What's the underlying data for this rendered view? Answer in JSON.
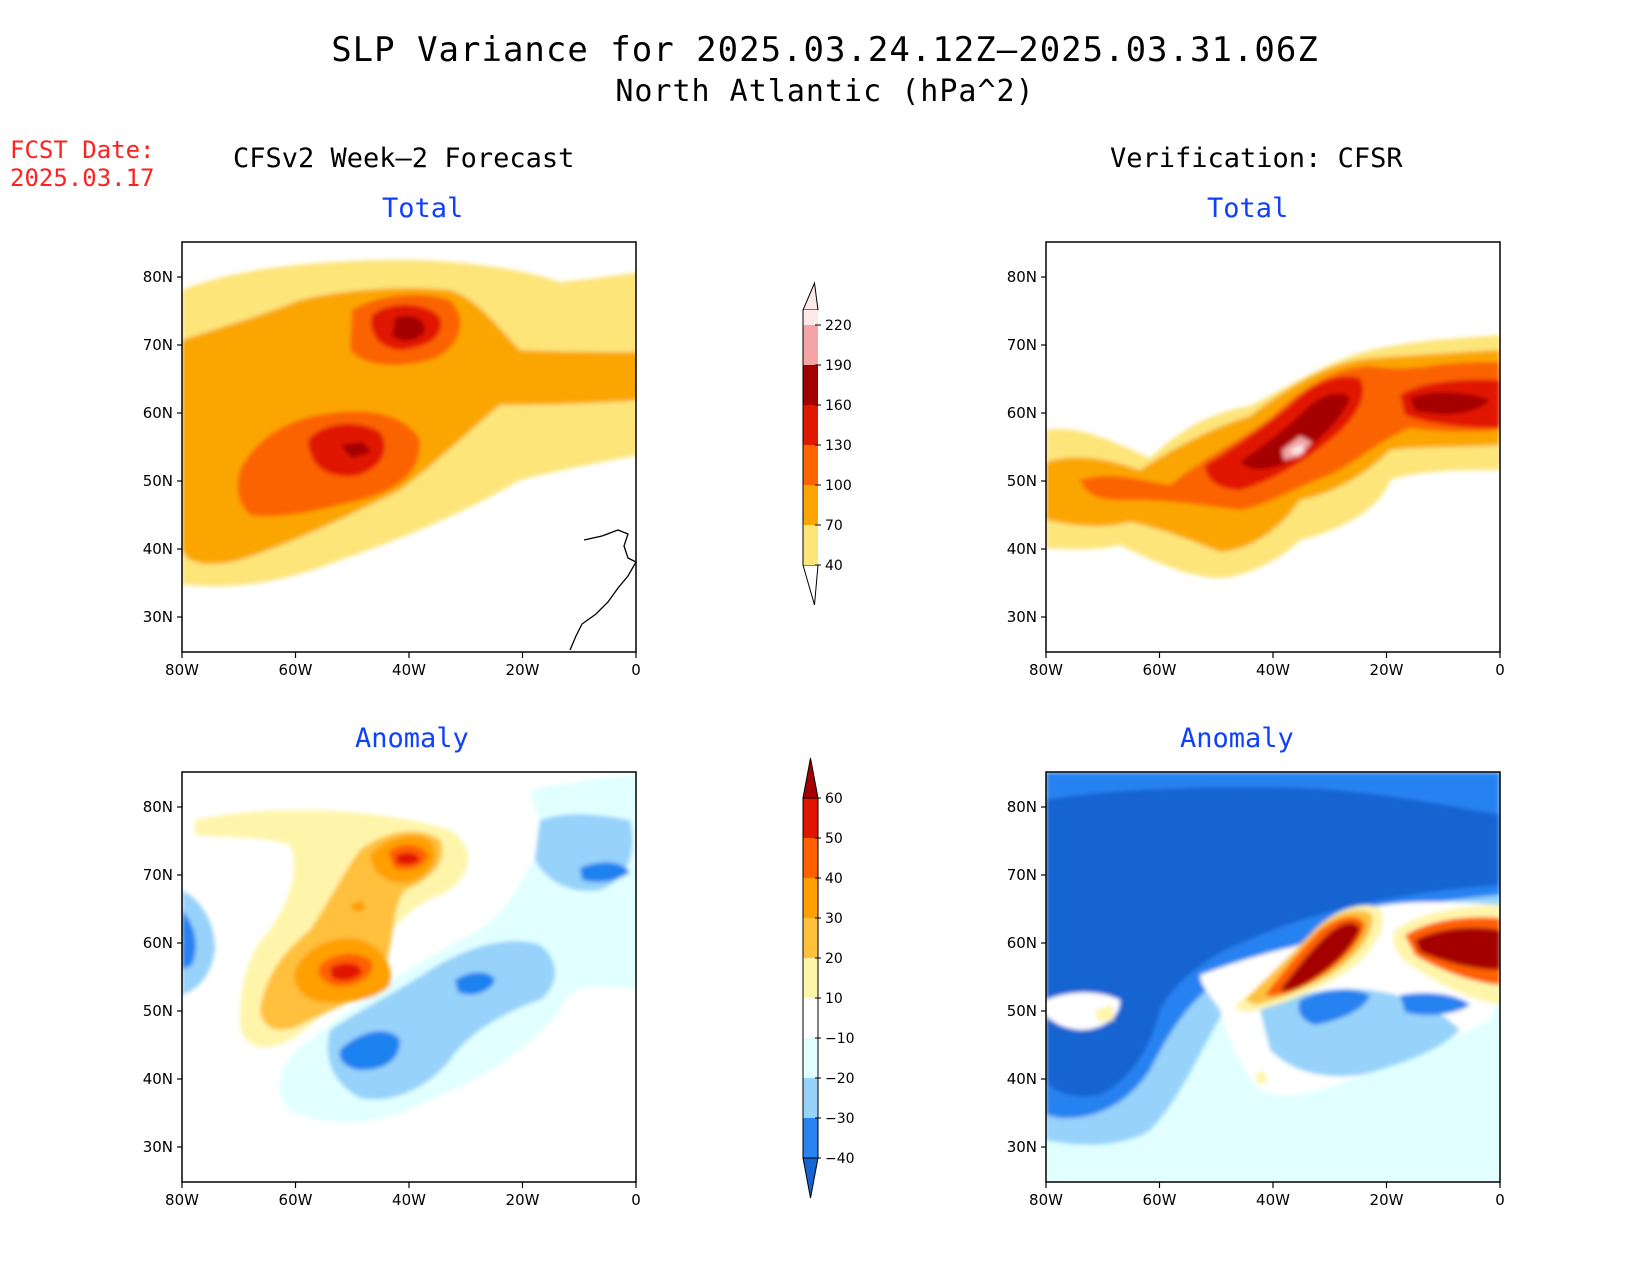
{
  "title": "SLP Variance for 2025.03.24.12Z–2025.03.31.06Z",
  "subtitle": "North Atlantic (hPa^2)",
  "fcst_label": "FCST Date:",
  "fcst_date": "2025.03.17",
  "left_column_title": "CFSv2 Week–2 Forecast",
  "right_column_title": "Verification: CFSR",
  "panel_titles": {
    "total": "Total",
    "anomaly": "Anomaly"
  },
  "lat_ticks": [
    "80N",
    "70N",
    "60N",
    "50N",
    "40N",
    "30N"
  ],
  "lon_ticks": [
    "80W",
    "60W",
    "40W",
    "20W",
    "0"
  ],
  "total_colorbar": {
    "labels": [
      "40",
      "70",
      "100",
      "130",
      "160",
      "190",
      "220"
    ],
    "colors": [
      "#fde57a",
      "#fba600",
      "#fb6400",
      "#e11800",
      "#a50000",
      "#f4a4a4",
      "#fde8e8"
    ]
  },
  "anomaly_colorbar": {
    "labels": [
      "−40",
      "−30",
      "−20",
      "−10",
      "10",
      "20",
      "30",
      "40",
      "50",
      "60"
    ],
    "colors": [
      "#1464d2",
      "#2882f0",
      "#96d2fa",
      "#e1ffff",
      "#ffffff",
      "#fff5aa",
      "#ffc03c",
      "#ff9f00",
      "#ff6000",
      "#e11400",
      "#a50000"
    ]
  },
  "colors": {
    "accent_red": "#ff2020",
    "panel_title_blue": "#1040ff"
  }
}
